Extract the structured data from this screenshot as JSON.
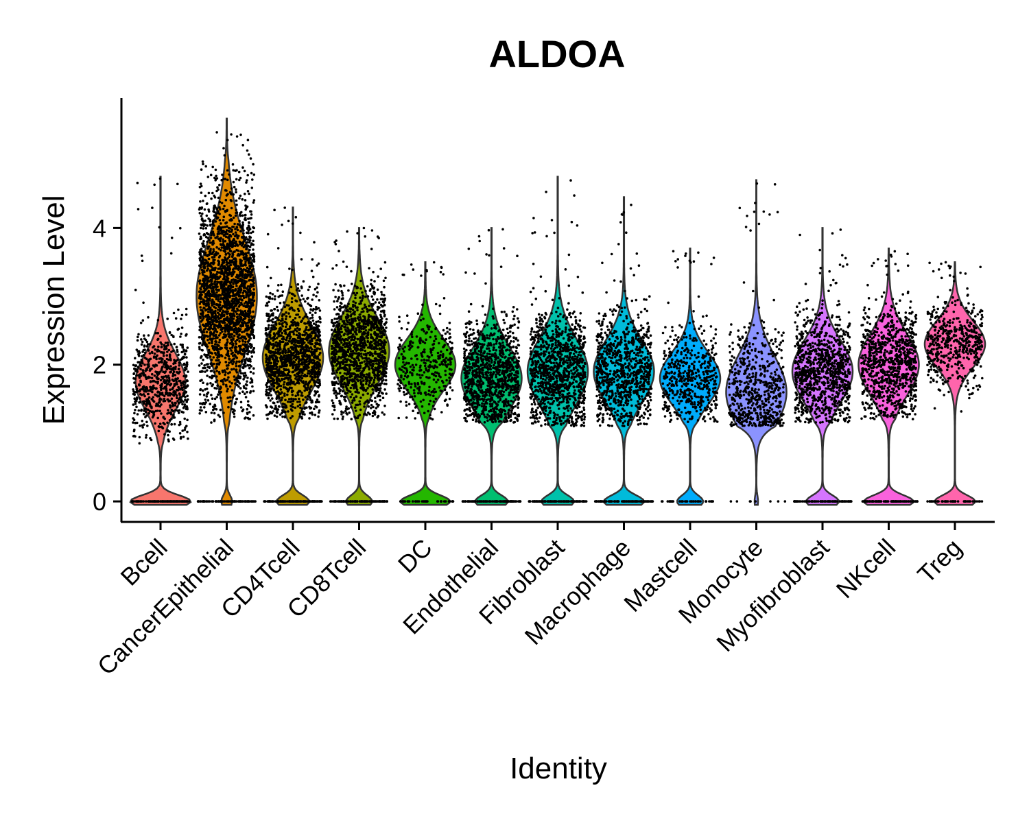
{
  "chart_data": {
    "type": "violin",
    "title": "ALDOA",
    "xlabel": "Identity",
    "ylabel": "Expression Level",
    "ylim": [
      -0.3,
      5.9
    ],
    "yticks": [
      0,
      2,
      4
    ],
    "ytick_labels": [
      "0",
      "2",
      "4"
    ],
    "grid": false,
    "legend": "none",
    "categories": [
      {
        "name": "Bcell",
        "color": "#F8766D",
        "zero_frac": 0.55,
        "center": 1.75,
        "spread": 0.55,
        "min": 0.85,
        "max": 3.4,
        "outlier_max": 4.75,
        "dot_count": 700
      },
      {
        "name": "CancerEpithelial",
        "color": "#E18A00",
        "zero_frac": 0.15,
        "center": 3.0,
        "spread": 1.1,
        "min": 1.15,
        "max": 5.0,
        "outlier_max": 5.6,
        "dot_count": 2200
      },
      {
        "name": "CD4Tcell",
        "color": "#BE9C00",
        "zero_frac": 0.35,
        "center": 2.1,
        "spread": 0.65,
        "min": 1.2,
        "max": 3.5,
        "outlier_max": 4.3,
        "dot_count": 1300
      },
      {
        "name": "CD8Tcell",
        "color": "#8CAB00",
        "zero_frac": 0.3,
        "center": 2.2,
        "spread": 0.65,
        "min": 1.2,
        "max": 3.6,
        "outlier_max": 4.0,
        "dot_count": 1300
      },
      {
        "name": "DC",
        "color": "#24B700",
        "zero_frac": 0.45,
        "center": 2.0,
        "spread": 0.5,
        "min": 1.2,
        "max": 3.3,
        "outlier_max": 3.5,
        "dot_count": 350
      },
      {
        "name": "Endothelial",
        "color": "#00BE70",
        "zero_frac": 0.35,
        "center": 1.8,
        "spread": 0.6,
        "min": 1.15,
        "max": 3.3,
        "outlier_max": 4.0,
        "dot_count": 1100
      },
      {
        "name": "Fibroblast",
        "color": "#00C1AB",
        "zero_frac": 0.35,
        "center": 1.9,
        "spread": 0.65,
        "min": 1.1,
        "max": 3.6,
        "outlier_max": 4.75,
        "dot_count": 1100
      },
      {
        "name": "Macrophage",
        "color": "#00BBDA",
        "zero_frac": 0.4,
        "center": 1.9,
        "spread": 0.6,
        "min": 1.1,
        "max": 3.4,
        "outlier_max": 4.45,
        "dot_count": 900
      },
      {
        "name": "Mastcell",
        "color": "#00ACFC",
        "zero_frac": 0.3,
        "center": 1.8,
        "spread": 0.5,
        "min": 1.15,
        "max": 3.4,
        "outlier_max": 3.7,
        "dot_count": 500
      },
      {
        "name": "Monocyte",
        "color": "#8B93FF",
        "zero_frac": 0.05,
        "center": 1.6,
        "spread": 0.7,
        "min": 1.1,
        "max": 3.9,
        "outlier_max": 4.7,
        "dot_count": 600
      },
      {
        "name": "Myofibroblast",
        "color": "#D575FE",
        "zero_frac": 0.35,
        "center": 1.9,
        "spread": 0.6,
        "min": 1.15,
        "max": 3.3,
        "outlier_max": 4.0,
        "dot_count": 1000
      },
      {
        "name": "NKcell",
        "color": "#F962DD",
        "zero_frac": 0.45,
        "center": 2.0,
        "spread": 0.6,
        "min": 1.2,
        "max": 3.4,
        "outlier_max": 3.7,
        "dot_count": 900
      },
      {
        "name": "Treg",
        "color": "#FF65AC",
        "zero_frac": 0.4,
        "center": 2.3,
        "spread": 0.45,
        "min": 1.2,
        "max": 3.3,
        "outlier_max": 3.5,
        "dot_count": 500
      }
    ]
  }
}
